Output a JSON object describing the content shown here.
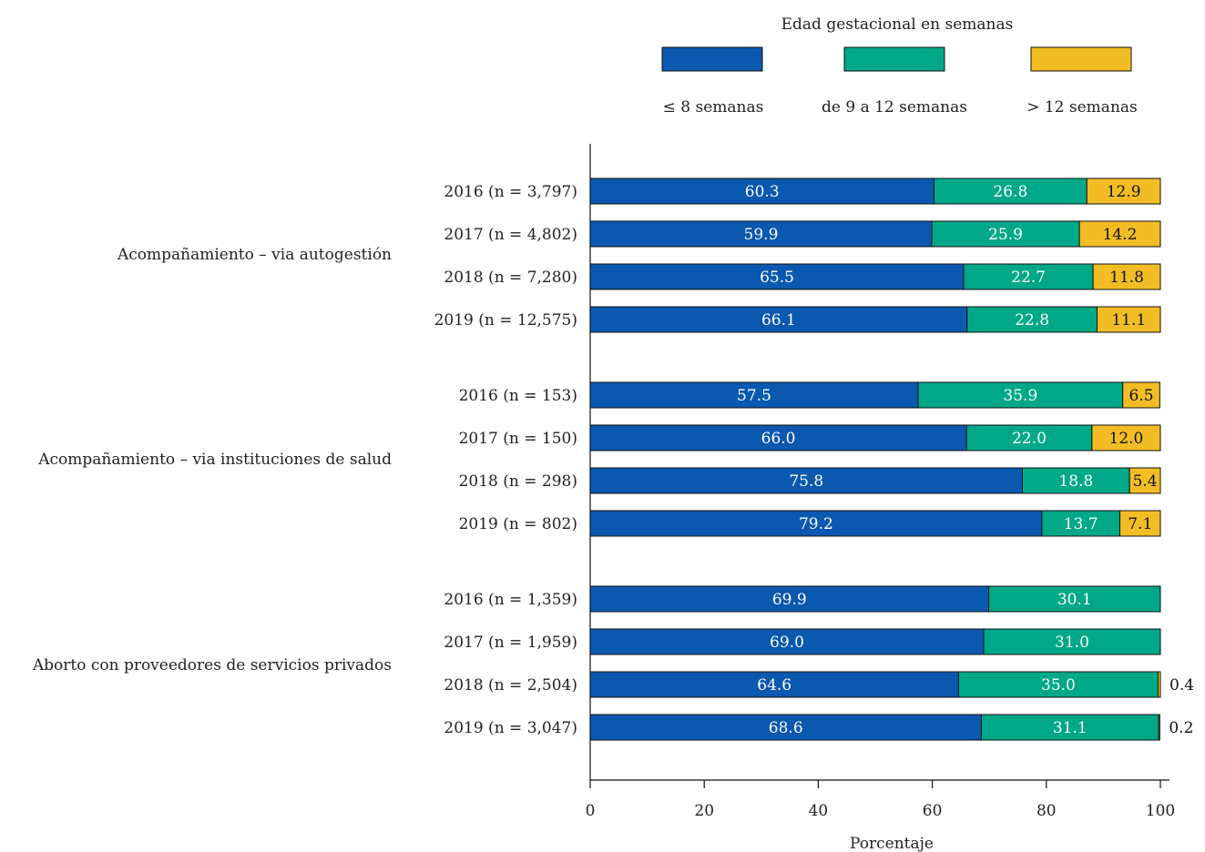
{
  "chart_data": {
    "type": "bar",
    "orientation": "horizontal",
    "stacked": true,
    "legend": {
      "title": "Edad gestacional en semanas",
      "position": "top"
    },
    "xlabel": "Porcentaje",
    "xlim": [
      0,
      100
    ],
    "xticks": [
      "0",
      "20",
      "40",
      "60",
      "80",
      "100"
    ],
    "grid": false,
    "series": [
      {
        "name": "≤ 8 semanas",
        "color": "#0a58b0"
      },
      {
        "name": "de 9 a 12 semanas",
        "color": "#00a887"
      },
      {
        "name": "> 12 semanas",
        "color": "#f2bd24"
      }
    ],
    "groups": [
      {
        "name": "Acompañamiento – via autogestión",
        "bars": [
          {
            "label": "2016 (n = 3,797)",
            "values": [
              60.3,
              26.8,
              12.9
            ],
            "value_labels": [
              "60.3",
              "26.8",
              "12.9"
            ]
          },
          {
            "label": "2017 (n = 4,802)",
            "values": [
              59.9,
              25.9,
              14.2
            ],
            "value_labels": [
              "59.9",
              "25.9",
              "14.2"
            ]
          },
          {
            "label": "2018 (n = 7,280)",
            "values": [
              65.5,
              22.7,
              11.8
            ],
            "value_labels": [
              "65.5",
              "22.7",
              "11.8"
            ]
          },
          {
            "label": "2019 (n = 12,575)",
            "values": [
              66.1,
              22.8,
              11.1
            ],
            "value_labels": [
              "66.1",
              "22.8",
              "11.1"
            ]
          }
        ]
      },
      {
        "name": "Acompañamiento – via instituciones de salud",
        "bars": [
          {
            "label": "2016 (n = 153)",
            "values": [
              57.5,
              35.9,
              6.5
            ],
            "value_labels": [
              "57.5",
              "35.9",
              "6.5"
            ]
          },
          {
            "label": "2017 (n = 150)",
            "values": [
              66.0,
              22.0,
              12.0
            ],
            "value_labels": [
              "66.0",
              "22.0",
              "12.0"
            ]
          },
          {
            "label": "2018 (n = 298)",
            "values": [
              75.8,
              18.8,
              5.4
            ],
            "value_labels": [
              "75.8",
              "18.8",
              "5.4"
            ]
          },
          {
            "label": "2019 (n = 802)",
            "values": [
              79.2,
              13.7,
              7.1
            ],
            "value_labels": [
              "79.2",
              "13.7",
              "7.1"
            ]
          }
        ]
      },
      {
        "name": "Aborto con proveedores de servicios privados",
        "bars": [
          {
            "label": "2016 (n = 1,359)",
            "values": [
              69.9,
              30.1,
              0
            ],
            "value_labels": [
              "69.9",
              "30.1",
              ""
            ]
          },
          {
            "label": "2017 (n = 1,959)",
            "values": [
              69.0,
              31.0,
              0
            ],
            "value_labels": [
              "69.0",
              "31.0",
              ""
            ]
          },
          {
            "label": "2018 (n = 2,504)",
            "values": [
              64.6,
              35.0,
              0.4
            ],
            "value_labels": [
              "64.6",
              "35.0",
              "0.4"
            ]
          },
          {
            "label": "2019 (n = 3,047)",
            "values": [
              68.6,
              31.1,
              0.2
            ],
            "value_labels": [
              "68.6",
              "31.1",
              "0.2"
            ]
          }
        ]
      }
    ]
  }
}
